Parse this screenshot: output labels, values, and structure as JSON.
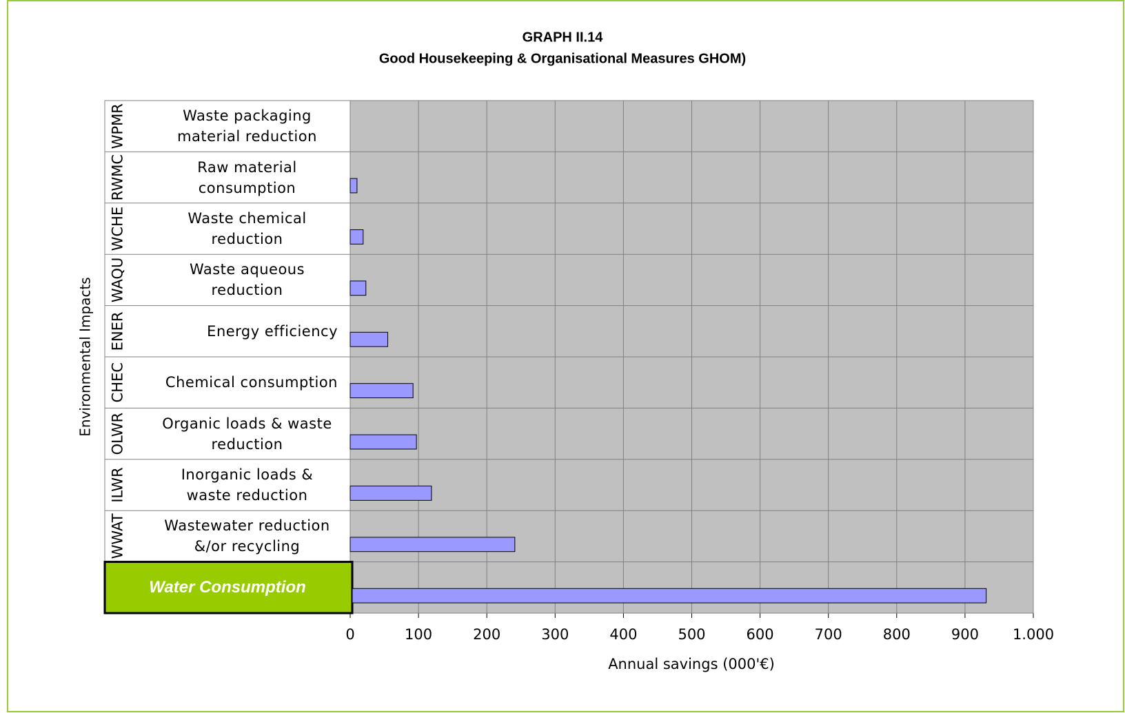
{
  "chart_data": {
    "type": "bar",
    "orientation": "horizontal",
    "title": "GRAPH II.14",
    "subtitle": "Good Housekeeping & Organisational Measures GHOM)",
    "y_label": "Environmental Impacts",
    "x_label": "Annual savings (000'€)",
    "category_codes": [
      "WPMR",
      "RWMC",
      "WCHE",
      "WAQU",
      "ENER",
      "CHEC",
      "OLWR",
      "ILWR",
      "WWAT",
      null
    ],
    "categories": [
      "Waste packaging material reduction",
      "Raw material consumption",
      "Waste chemical reduction",
      "Waste aqueous reduction",
      "Energy efficiency",
      "Chemical consumption",
      "Organic loads & waste reduction",
      "Inorganic loads & waste reduction",
      "Wastewater reduction &/or recycling",
      "Water Consumption"
    ],
    "values": [
      0,
      10,
      19,
      23,
      55,
      92,
      97,
      119,
      241,
      928
    ],
    "highlight": "Water Consumption",
    "color": "#9999ff",
    "highlight_color": "#99cc00",
    "plot_background": "#c0c0c0",
    "xlim": [
      0,
      1000
    ],
    "xticks": [
      0,
      100,
      200,
      300,
      400,
      500,
      600,
      700,
      800,
      900,
      {
        "value": 1000,
        "label": "1.000"
      }
    ],
    "grid": true
  }
}
